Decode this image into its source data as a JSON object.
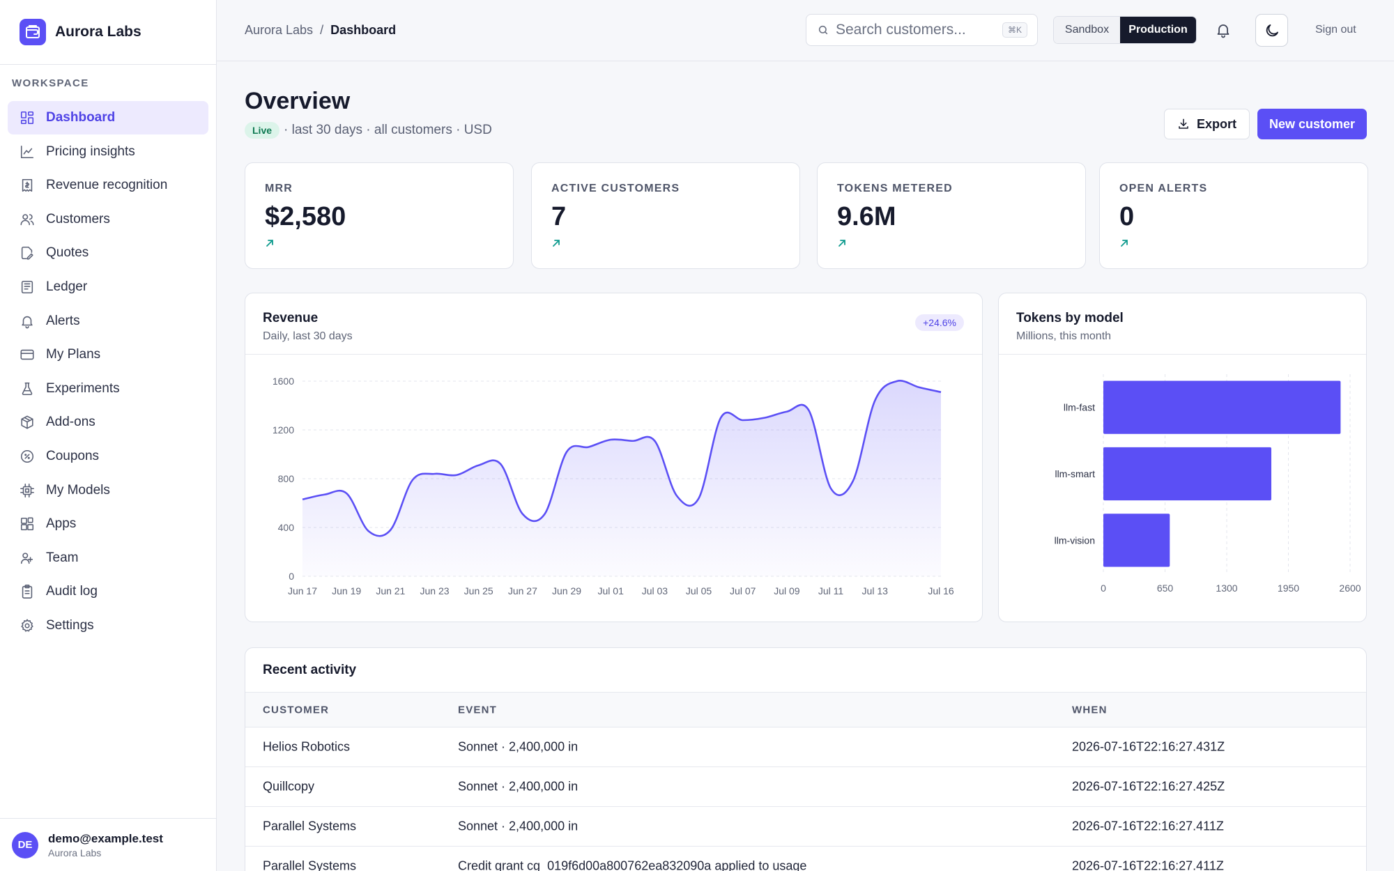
{
  "brand": {
    "name": "Aurora Labs"
  },
  "sidebar": {
    "section_label": "WORKSPACE",
    "items": [
      {
        "label": "Dashboard",
        "icon": "dashboard-icon",
        "active": true
      },
      {
        "label": "Pricing insights",
        "icon": "chart-line-icon"
      },
      {
        "label": "Revenue recognition",
        "icon": "receipt-icon"
      },
      {
        "label": "Customers",
        "icon": "users-icon"
      },
      {
        "label": "Quotes",
        "icon": "document-edit-icon"
      },
      {
        "label": "Ledger",
        "icon": "ledger-icon"
      },
      {
        "label": "Alerts",
        "icon": "bell-icon"
      },
      {
        "label": "My Plans",
        "icon": "credit-card-icon"
      },
      {
        "label": "Experiments",
        "icon": "flask-icon"
      },
      {
        "label": "Add-ons",
        "icon": "package-icon"
      },
      {
        "label": "Coupons",
        "icon": "coupon-icon"
      },
      {
        "label": "My Models",
        "icon": "cpu-icon"
      },
      {
        "label": "Apps",
        "icon": "apps-icon"
      },
      {
        "label": "Team",
        "icon": "team-icon"
      },
      {
        "label": "Audit log",
        "icon": "clipboard-icon"
      },
      {
        "label": "Settings",
        "icon": "gear-icon"
      }
    ],
    "user": {
      "initials": "DE",
      "email": "demo@example.test",
      "org": "Aurora Labs"
    }
  },
  "topbar": {
    "breadcrumb_root": "Aurora Labs",
    "breadcrumb_sep": "/",
    "breadcrumb_current": "Dashboard",
    "search_placeholder": "Search customers...",
    "search_shortcut": "⌘K",
    "env_sandbox": "Sandbox",
    "env_production": "Production",
    "env_selected": "Production",
    "sign_out": "Sign out"
  },
  "overview": {
    "title": "Overview",
    "live_badge": "Live",
    "filters": "· last 30 days · all customers · USD",
    "export_label": "Export",
    "new_customer_label": "New customer"
  },
  "kpis": [
    {
      "label": "MRR",
      "value": "$2,580"
    },
    {
      "label": "ACTIVE CUSTOMERS",
      "value": "7"
    },
    {
      "label": "TOKENS METERED",
      "value": "9.6M"
    },
    {
      "label": "OPEN ALERTS",
      "value": "0"
    }
  ],
  "revenue_card": {
    "title": "Revenue",
    "subtitle": "Daily, last 30 days",
    "change": "+24.6%"
  },
  "tokens_card": {
    "title": "Tokens by model",
    "subtitle": "Millions, this month"
  },
  "chart_data": [
    {
      "type": "area",
      "title": "Revenue",
      "subtitle": "Daily, last 30 days",
      "color": "#5b4ff5",
      "x": [
        "Jun 17",
        "Jun 18",
        "Jun 19",
        "Jun 20",
        "Jun 21",
        "Jun 22",
        "Jun 23",
        "Jun 24",
        "Jun 25",
        "Jun 26",
        "Jun 27",
        "Jun 28",
        "Jun 29",
        "Jun 30",
        "Jul 01",
        "Jul 02",
        "Jul 03",
        "Jul 04",
        "Jul 05",
        "Jul 06",
        "Jul 07",
        "Jul 08",
        "Jul 09",
        "Jul 10",
        "Jul 11",
        "Jul 12",
        "Jul 13",
        "Jul 14",
        "Jul 15",
        "Jul 16"
      ],
      "values": [
        630,
        670,
        680,
        370,
        380,
        790,
        840,
        830,
        910,
        920,
        510,
        510,
        1020,
        1060,
        1120,
        1110,
        1110,
        660,
        640,
        1300,
        1280,
        1300,
        1350,
        1360,
        720,
        780,
        1440,
        1600,
        1550,
        1510
      ],
      "tick_labels": [
        "Jun 17",
        "Jun 19",
        "Jun 21",
        "Jun 23",
        "Jun 25",
        "Jun 27",
        "Jun 29",
        "Jul 01",
        "Jul 03",
        "Jul 05",
        "Jul 07",
        "Jul 09",
        "Jul 11",
        "Jul 13",
        "Jul 16"
      ],
      "yticks": [
        0,
        400,
        800,
        1200,
        1600
      ],
      "ylim": [
        0,
        1600
      ],
      "grid": true
    },
    {
      "type": "bar",
      "orientation": "horizontal",
      "title": "Tokens by model",
      "subtitle": "Millions, this month",
      "color": "#5b4ff5",
      "categories": [
        "llm-fast",
        "llm-smart",
        "llm-vision"
      ],
      "values": [
        2500,
        1770,
        700
      ],
      "xticks": [
        "0",
        "650",
        "1300",
        "1950",
        "2600"
      ],
      "xlim": [
        0,
        2600
      ],
      "grid": true
    }
  ],
  "activity": {
    "title": "Recent activity",
    "columns": [
      "CUSTOMER",
      "EVENT",
      "WHEN"
    ],
    "rows": [
      {
        "customer": "Helios Robotics",
        "event": "Sonnet · 2,400,000 in",
        "when": "2026-07-16T22:16:27.431Z"
      },
      {
        "customer": "Quillcopy",
        "event": "Sonnet · 2,400,000 in",
        "when": "2026-07-16T22:16:27.425Z"
      },
      {
        "customer": "Parallel Systems",
        "event": "Sonnet · 2,400,000 in",
        "when": "2026-07-16T22:16:27.411Z"
      },
      {
        "customer": "Parallel Systems",
        "event": "Credit grant cg_019f6d00a800762ea832090a applied to usage",
        "when": "2026-07-16T22:16:27.411Z"
      }
    ]
  }
}
